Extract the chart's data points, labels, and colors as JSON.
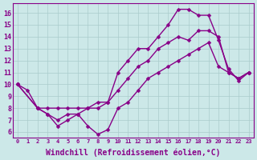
{
  "background_color": "#cce8e8",
  "grid_color": "#aacccc",
  "line_color": "#880088",
  "marker": "D",
  "markersize": 2.5,
  "linewidth": 1.0,
  "xlabel": "Windchill (Refroidissement éolien,°C)",
  "xlabel_fontsize": 7,
  "ylim": [
    5.5,
    16.8
  ],
  "xlim": [
    -0.5,
    23.5
  ],
  "ytick_values": [
    6,
    7,
    8,
    9,
    10,
    11,
    12,
    13,
    14,
    15,
    16
  ],
  "line1_x": [
    0,
    1,
    2,
    3,
    4,
    5,
    6,
    7,
    8,
    9,
    10,
    11,
    12,
    13,
    14,
    15,
    16,
    17,
    18,
    19,
    20,
    21,
    22,
    23
  ],
  "line1_y": [
    10,
    9.5,
    8.0,
    7.5,
    7.0,
    7.5,
    7.5,
    8.0,
    8.0,
    8.5,
    11.0,
    12.0,
    13.0,
    13.0,
    14.0,
    15.0,
    16.3,
    16.3,
    15.8,
    15.8,
    13.7,
    11.3,
    10.3,
    11.0
  ],
  "line2_x": [
    0,
    2,
    3,
    4,
    5,
    6,
    7,
    8,
    9,
    10,
    11,
    12,
    13,
    14,
    15,
    16,
    17,
    18,
    19,
    20,
    21,
    22,
    23
  ],
  "line2_y": [
    10,
    8.0,
    8.0,
    8.0,
    8.0,
    8.0,
    8.0,
    8.5,
    8.5,
    9.5,
    10.5,
    11.5,
    12.0,
    13.0,
    13.5,
    14.0,
    13.7,
    14.5,
    14.5,
    14.0,
    11.0,
    10.5,
    11.0
  ],
  "line3_x": [
    0,
    2,
    3,
    4,
    5,
    6,
    7,
    8,
    9,
    10,
    11,
    12,
    13,
    14,
    15,
    16,
    17,
    18,
    19,
    20,
    21,
    22,
    23
  ],
  "line3_y": [
    10,
    8.0,
    7.5,
    6.5,
    7.0,
    7.5,
    6.5,
    5.8,
    6.2,
    8.0,
    8.5,
    9.5,
    10.5,
    11.0,
    11.5,
    12.0,
    12.5,
    13.0,
    13.5,
    11.5,
    11.0,
    10.5,
    11.0
  ]
}
